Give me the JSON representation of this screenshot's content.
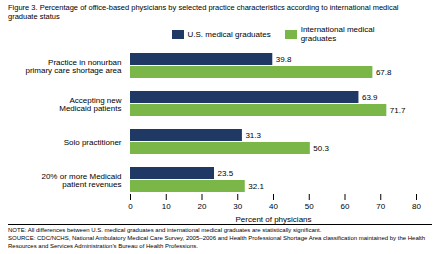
{
  "chart_data": {
    "type": "bar",
    "orientation": "horizontal",
    "title": "Figure 3. Percentage of office-based physicians by selected practice characteristics according to international medical\ngraduate status",
    "categories": [
      "Practice in nonurban\nprimary care shortage area",
      "Accepting new\nMedicaid patients",
      "Solo practitioner",
      "20% or more Medicaid\npatient revenues"
    ],
    "series": [
      {
        "name": "U.S. medical graduates",
        "color": "#1F3864",
        "values": [
          39.8,
          63.9,
          31.3,
          23.5
        ]
      },
      {
        "name": "International medical\ngraduates",
        "color": "#7AB648",
        "values": [
          67.8,
          71.7,
          50.3,
          32.1
        ]
      }
    ],
    "xlabel": "Percent of physicians",
    "xlim": [
      0,
      80
    ],
    "xticks": [
      0,
      10,
      20,
      30,
      40,
      50,
      60,
      70,
      80
    ],
    "data_labels": true,
    "legend": "top",
    "grid": false,
    "annotations": [
      "NOTE: All differences between U.S. medical graduates and international medical graduates are statistically significant.",
      "SOURCE: CDC/NCHS, National Ambulatory Medical Care Survey, 2005–2006 and Health Professional Shortage Area classification maintained by the Health\nResources and Services Administration’s Bureau of Health Professions."
    ]
  }
}
